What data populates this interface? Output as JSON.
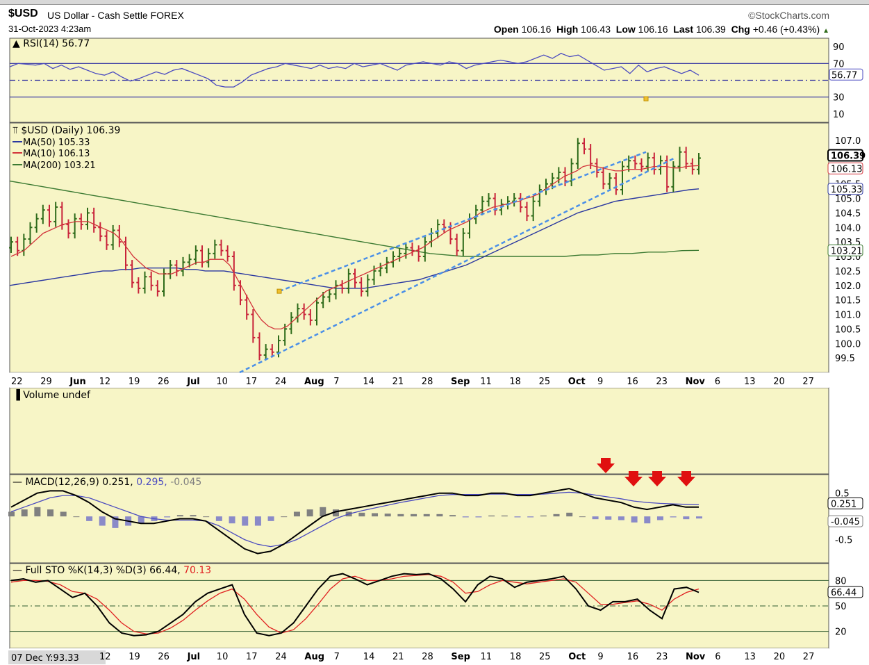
{
  "header": {
    "symbol": "$USD",
    "name": "US Dollar - Cash Settle FOREX",
    "datetime": "31-Oct-2023 4:23am",
    "brand": "©StockCharts.com",
    "ohlc": {
      "open_label": "Open",
      "open": "106.16",
      "high_label": "High",
      "high": "106.43",
      "low_label": "Low",
      "low": "106.16",
      "last_label": "Last",
      "last": "106.39",
      "chg_label": "Chg",
      "chg": "+0.46 (+0.43%)"
    }
  },
  "colors": {
    "panel_bg": "#f7f5c6",
    "up_bar": "#2e6b1a",
    "down_bar": "#c8233a",
    "ma50": "#2a37a0",
    "ma10": "#d2333a",
    "ma200": "#3c7a32",
    "channel": "#4a8fe8",
    "rsi": "#4a4ac0",
    "macd_signal": "#4a4ac0",
    "hist_pos": "#808080",
    "hist_neg": "#8a8ac8",
    "arrow": "#e01010"
  },
  "chart_data": [
    {
      "type": "line",
      "panel": "RSI",
      "legend": "RSI(14) 56.77",
      "ylim": [
        0,
        100
      ],
      "guides": [
        70,
        50,
        30
      ],
      "ticks": [
        "90",
        "70",
        "30",
        "10"
      ],
      "last_badge": "56.77",
      "values": [
        66,
        70,
        69,
        68,
        70,
        64,
        68,
        63,
        66,
        62,
        58,
        56,
        60,
        54,
        49,
        52,
        56,
        60,
        57,
        62,
        64,
        60,
        56,
        52,
        44,
        42,
        42,
        48,
        56,
        60,
        64,
        66,
        70,
        68,
        66,
        64,
        68,
        64,
        66,
        64,
        70,
        66,
        68,
        70,
        66,
        62,
        68,
        70,
        72,
        70,
        68,
        72,
        70,
        64,
        68,
        70,
        72,
        74,
        72,
        70,
        72,
        76,
        80,
        76,
        82,
        78,
        80,
        74,
        68,
        62,
        64,
        66,
        58,
        68,
        60,
        64,
        66,
        62,
        58,
        62,
        56
      ]
    },
    {
      "type": "ohlc",
      "panel": "Price",
      "legend": {
        "main": "$USD (Daily) 106.39",
        "ma50": "MA(50) 105.33",
        "ma10": "MA(10) 106.13",
        "ma200": "MA(200) 103.21"
      },
      "ylim": [
        99.0,
        107.6
      ],
      "ticks": [
        "107.0",
        "106.5",
        "106.0",
        "105.5",
        "105.0",
        "104.5",
        "104.0",
        "103.5",
        "103.0",
        "102.5",
        "102.0",
        "101.5",
        "101.0",
        "100.5",
        "100.0",
        "99.5"
      ],
      "badges": [
        "106.39",
        "106.13",
        "105.33",
        "103.21"
      ],
      "close": [
        103.5,
        103.2,
        103.6,
        104.0,
        104.3,
        104.6,
        104.2,
        104.7,
        104.1,
        103.8,
        104.3,
        104.1,
        104.5,
        104.0,
        103.7,
        103.4,
        103.9,
        103.5,
        102.7,
        102.1,
        101.9,
        102.3,
        102.0,
        101.8,
        102.4,
        102.7,
        102.5,
        102.8,
        102.9,
        103.2,
        102.8,
        103.1,
        103.4,
        103.2,
        103.0,
        102.0,
        101.5,
        101.0,
        100.2,
        99.6,
        99.8,
        99.7,
        100.1,
        100.5,
        100.9,
        101.2,
        101.0,
        100.8,
        101.4,
        101.6,
        101.7,
        102.0,
        101.9,
        102.4,
        102.1,
        101.8,
        102.2,
        102.5,
        102.6,
        102.8,
        103.0,
        103.1,
        103.3,
        103.2,
        103.0,
        103.5,
        103.8,
        104.1,
        104.0,
        103.6,
        103.2,
        103.8,
        104.3,
        104.6,
        104.9,
        105.0,
        104.6,
        104.8,
        104.9,
        105.0,
        104.7,
        104.4,
        104.9,
        105.3,
        105.5,
        105.7,
        105.9,
        105.6,
        106.2,
        106.9,
        106.7,
        106.2,
        105.9,
        105.5,
        105.7,
        105.3,
        106.1,
        106.3,
        106.2,
        106.1,
        106.4,
        106.0,
        106.3,
        105.4,
        106.1,
        106.6,
        106.2,
        106.0,
        106.39
      ],
      "ma10": [
        103.0,
        103.1,
        103.2,
        103.4,
        103.6,
        103.8,
        103.9,
        104.0,
        104.1,
        104.15,
        104.2,
        104.2,
        104.2,
        104.1,
        104.0,
        103.9,
        103.8,
        103.6,
        103.3,
        103.0,
        102.8,
        102.6,
        102.5,
        102.4,
        102.4,
        102.4,
        102.5,
        102.6,
        102.7,
        102.8,
        102.8,
        102.9,
        102.9,
        102.9,
        102.7,
        102.3,
        101.9,
        101.5,
        101.1,
        100.8,
        100.6,
        100.5,
        100.5,
        100.6,
        100.8,
        101.0,
        101.2,
        101.4,
        101.6,
        101.8,
        101.9,
        102.0,
        102.1,
        102.2,
        102.3,
        102.4,
        102.5,
        102.6,
        102.7,
        102.8,
        102.9,
        103.0,
        103.1,
        103.2,
        103.3,
        103.45,
        103.6,
        103.75,
        103.9,
        104.0,
        104.1,
        104.2,
        104.35,
        104.5,
        104.6,
        104.7,
        104.75,
        104.8,
        104.85,
        104.9,
        105.0,
        105.05,
        105.15,
        105.3,
        105.45,
        105.6,
        105.75,
        105.85,
        105.95,
        106.1,
        106.15,
        106.1,
        106.05,
        106.0,
        105.95,
        105.95,
        106.0,
        106.0,
        106.0,
        106.05,
        106.1,
        106.1,
        106.1,
        106.05,
        106.05,
        106.1,
        106.12,
        106.13
      ],
      "ma50": [
        102.0,
        102.05,
        102.1,
        102.15,
        102.2,
        102.25,
        102.3,
        102.35,
        102.4,
        102.45,
        102.5,
        102.5,
        102.55,
        102.55,
        102.6,
        102.6,
        102.6,
        102.6,
        102.6,
        102.55,
        102.55,
        102.5,
        102.5,
        102.5,
        102.45,
        102.4,
        102.35,
        102.3,
        102.25,
        102.2,
        102.15,
        102.1,
        102.05,
        102.0,
        101.95,
        101.9,
        101.9,
        101.9,
        101.9,
        101.95,
        102.0,
        102.05,
        102.1,
        102.15,
        102.2,
        102.3,
        102.4,
        102.5,
        102.6,
        102.7,
        102.85,
        103.0,
        103.15,
        103.3,
        103.45,
        103.6,
        103.75,
        103.9,
        104.05,
        104.2,
        104.35,
        104.5,
        104.6,
        104.7,
        104.8,
        104.9,
        104.95,
        105.0,
        105.05,
        105.1,
        105.15,
        105.2,
        105.25,
        105.3,
        105.33
      ],
      "ma200": [
        105.6,
        105.5,
        105.4,
        105.3,
        105.2,
        105.1,
        105.0,
        104.9,
        104.8,
        104.7,
        104.6,
        104.5,
        104.4,
        104.3,
        104.2,
        104.1,
        104.0,
        103.9,
        103.8,
        103.7,
        103.6,
        103.5,
        103.4,
        103.3,
        103.2,
        103.1,
        103.05,
        103.0,
        103.0,
        103.0,
        103.0,
        103.0,
        103.0,
        103.0,
        103.05,
        103.05,
        103.1,
        103.1,
        103.15,
        103.15,
        103.2,
        103.21
      ],
      "channel": [
        {
          "from": [
            100.5
          ],
          "to": [
            106.6
          ]
        },
        {
          "from": [
            99.0
          ],
          "to": [
            106.6
          ]
        }
      ],
      "x_ticks": [
        "22",
        "29",
        "Jun",
        "12",
        "19",
        "26",
        "Jul",
        "10",
        "17",
        "24",
        "Aug",
        "7",
        "14",
        "21",
        "28",
        "Sep",
        "11",
        "18",
        "25",
        "Oct",
        "9",
        "16",
        "23",
        "Nov",
        "6",
        "13",
        "20",
        "27"
      ]
    },
    {
      "type": "bar",
      "panel": "Volume",
      "legend": "Volume undef",
      "values": []
    },
    {
      "type": "line",
      "panel": "MACD",
      "legend": {
        "main": "MACD(12,26,9) 0.251,",
        "signal": "0.295,",
        "hist": "-0.045"
      },
      "ylim": [
        -1.0,
        0.9
      ],
      "ticks": [
        "0.5",
        "-0.5"
      ],
      "badges": [
        "0.251",
        "-0.045"
      ],
      "macd": [
        0.2,
        0.35,
        0.5,
        0.55,
        0.55,
        0.45,
        0.3,
        0.1,
        -0.05,
        -0.1,
        -0.15,
        -0.15,
        -0.1,
        -0.05,
        -0.05,
        -0.1,
        -0.3,
        -0.5,
        -0.7,
        -0.8,
        -0.75,
        -0.6,
        -0.4,
        -0.2,
        0.0,
        0.1,
        0.15,
        0.2,
        0.25,
        0.3,
        0.35,
        0.4,
        0.45,
        0.5,
        0.5,
        0.45,
        0.45,
        0.5,
        0.5,
        0.45,
        0.45,
        0.5,
        0.55,
        0.6,
        0.5,
        0.4,
        0.35,
        0.3,
        0.2,
        0.15,
        0.2,
        0.25,
        0.2,
        0.2
      ],
      "signal": [
        0.1,
        0.2,
        0.3,
        0.4,
        0.45,
        0.45,
        0.4,
        0.3,
        0.2,
        0.1,
        0.0,
        -0.05,
        -0.08,
        -0.08,
        -0.08,
        -0.1,
        -0.2,
        -0.35,
        -0.5,
        -0.6,
        -0.65,
        -0.6,
        -0.5,
        -0.35,
        -0.2,
        -0.05,
        0.05,
        0.12,
        0.18,
        0.24,
        0.3,
        0.35,
        0.4,
        0.45,
        0.47,
        0.47,
        0.47,
        0.48,
        0.48,
        0.47,
        0.47,
        0.48,
        0.5,
        0.52,
        0.5,
        0.46,
        0.42,
        0.38,
        0.33,
        0.3,
        0.28,
        0.27,
        0.26,
        0.25
      ],
      "hist": [
        0.1,
        0.15,
        0.2,
        0.15,
        0.1,
        0.0,
        -0.1,
        -0.2,
        -0.25,
        -0.2,
        -0.15,
        -0.1,
        -0.02,
        0.03,
        0.03,
        0.0,
        -0.1,
        -0.15,
        -0.2,
        -0.2,
        -0.1,
        0.0,
        0.1,
        0.15,
        0.2,
        0.15,
        0.1,
        0.08,
        0.07,
        0.06,
        0.05,
        0.05,
        0.05,
        0.05,
        0.03,
        -0.02,
        -0.02,
        0.02,
        0.02,
        -0.02,
        -0.02,
        0.02,
        0.05,
        0.08,
        0.0,
        -0.06,
        -0.07,
        -0.08,
        -0.13,
        -0.15,
        -0.08,
        -0.02,
        -0.06,
        -0.045
      ]
    },
    {
      "type": "line",
      "panel": "Stochastics",
      "legend": {
        "main": "Full STO %K(14,3) %D(3) 66.44,",
        "d": "70.13"
      },
      "ylim": [
        0,
        100
      ],
      "guides": [
        80,
        50,
        20
      ],
      "ticks": [
        "80",
        "50",
        "20"
      ],
      "badge": "66.44",
      "k": [
        80,
        82,
        78,
        80,
        70,
        60,
        65,
        50,
        30,
        18,
        15,
        16,
        20,
        30,
        40,
        55,
        65,
        70,
        75,
        40,
        18,
        15,
        18,
        30,
        50,
        70,
        85,
        88,
        82,
        75,
        80,
        85,
        88,
        87,
        88,
        82,
        70,
        55,
        75,
        85,
        82,
        72,
        78,
        80,
        82,
        85,
        70,
        50,
        45,
        55,
        55,
        58,
        45,
        35,
        70,
        72,
        66
      ],
      "d": [
        78,
        80,
        80,
        79,
        75,
        67,
        65,
        58,
        45,
        30,
        20,
        17,
        18,
        24,
        33,
        45,
        56,
        65,
        70,
        58,
        40,
        25,
        18,
        22,
        35,
        52,
        70,
        82,
        85,
        80,
        80,
        82,
        85,
        86,
        87,
        85,
        78,
        65,
        67,
        75,
        80,
        78,
        76,
        78,
        80,
        82,
        78,
        65,
        52,
        52,
        54,
        56,
        52,
        45,
        58,
        66,
        70
      ]
    },
    {
      "type": "table",
      "panel": "Time axis footer",
      "label": "07 Dec Y:93.33",
      "x_ticks": [
        "12",
        "19",
        "26",
        "Jul",
        "10",
        "17",
        "24",
        "Aug",
        "7",
        "14",
        "21",
        "28",
        "Sep",
        "11",
        "18",
        "25",
        "Oct",
        "9",
        "16",
        "23",
        "Nov",
        "6",
        "13",
        "20",
        "27"
      ]
    }
  ]
}
